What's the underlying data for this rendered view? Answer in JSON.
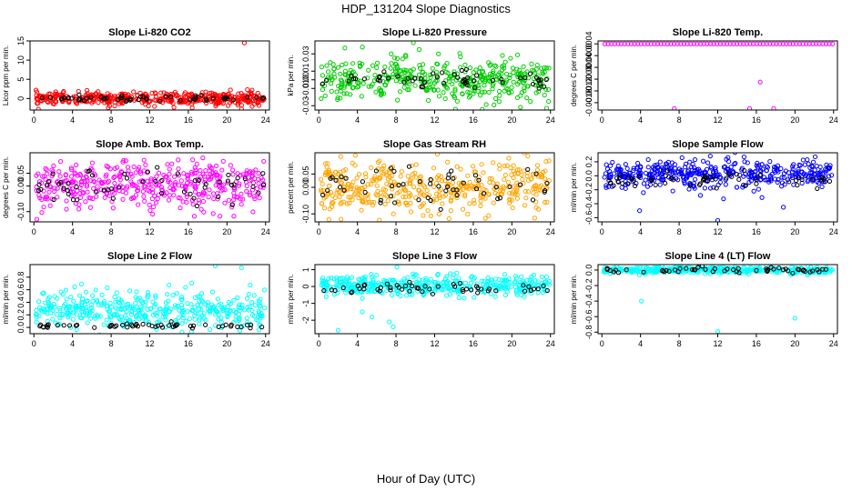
{
  "figure": {
    "title": "HDP_131204  Slope Diagnostics",
    "xlabel": "Hour of Day (UTC)"
  },
  "chart_data": [
    {
      "type": "scatter",
      "title": "Slope Li-820 CO2",
      "ylabel": "Licor ppm per min.",
      "color": "#ff0000",
      "xlim": [
        -0.4,
        24.4
      ],
      "ylim": [
        -3,
        15
      ],
      "yticks": [
        {
          "v": 0,
          "t": "0"
        },
        {
          "v": 5,
          "t": "5"
        },
        {
          "v": 10,
          "t": "10"
        },
        {
          "v": 15,
          "t": "15"
        }
      ],
      "xticks": [
        {
          "v": 0,
          "t": "0"
        },
        {
          "v": 4,
          "t": "4"
        },
        {
          "v": 8,
          "t": "8"
        },
        {
          "v": 12,
          "t": "12"
        },
        {
          "v": 16,
          "t": "16"
        },
        {
          "v": 20,
          "t": "20"
        },
        {
          "v": 24,
          "t": "24"
        }
      ],
      "main": {
        "mean": 0,
        "spread": 0.8
      },
      "ref": {
        "mean": 0,
        "spread": 0.4
      },
      "outliers": [
        [
          21.8,
          14.5
        ],
        [
          7.7,
          -2.4
        ],
        [
          16.4,
          -2.4
        ],
        [
          21.5,
          -2.7
        ],
        [
          22.6,
          2.2
        ],
        [
          23.2,
          1.4
        ]
      ]
    },
    {
      "type": "scatter",
      "title": "Slope Li-820 Pressure",
      "ylabel": "kPa per min.",
      "color": "#00cc00",
      "xlim": [
        -0.4,
        24.4
      ],
      "ylim": [
        -0.035,
        0.045
      ],
      "yticks": [
        {
          "v": -0.03,
          "t": "-0.03"
        },
        {
          "v": -0.01,
          "t": "-0.01"
        },
        {
          "v": 0,
          "t": "0.00"
        },
        {
          "v": 0.01,
          "t": "0.01"
        },
        {
          "v": 0.03,
          "t": "0.03"
        }
      ],
      "xticks": [
        {
          "v": 0,
          "t": "0"
        },
        {
          "v": 4,
          "t": "4"
        },
        {
          "v": 8,
          "t": "8"
        },
        {
          "v": 12,
          "t": "12"
        },
        {
          "v": 16,
          "t": "16"
        },
        {
          "v": 20,
          "t": "20"
        },
        {
          "v": 24,
          "t": "24"
        }
      ],
      "main": {
        "mean": 0.0,
        "spread": 0.012
      },
      "ref": {
        "mean": 0.0,
        "spread": 0.005
      },
      "outliers": [
        [
          9.8,
          0.043
        ],
        [
          6.4,
          -0.012
        ],
        [
          16.0,
          -0.016
        ],
        [
          23.6,
          -0.033
        ],
        [
          7.5,
          0.03
        ],
        [
          10.4,
          0.035
        ]
      ]
    },
    {
      "type": "scatter",
      "title": "Slope Li-820 Temp.",
      "ylabel": "degrees C per min.",
      "color": "#ff00ff",
      "xlim": [
        -0.4,
        24.4
      ],
      "ylim": [
        -0.00185,
        0.0005
      ],
      "yticks": [
        {
          "v": -0.0016,
          "t": "-0.0016"
        },
        {
          "v": -0.0012,
          "t": "-0.0012"
        },
        {
          "v": -0.0008,
          "t": "-0.0008"
        },
        {
          "v": -0.0004,
          "t": "-0.0004"
        },
        {
          "v": 0,
          "t": "0.0000"
        },
        {
          "v": 0.0004,
          "t": "0.0004"
        }
      ],
      "xticks": [
        {
          "v": 0,
          "t": "0"
        },
        {
          "v": 4,
          "t": "4"
        },
        {
          "v": 8,
          "t": "8"
        },
        {
          "v": 12,
          "t": "12"
        },
        {
          "v": 16,
          "t": "16"
        },
        {
          "v": 20,
          "t": "20"
        },
        {
          "v": 24,
          "t": "24"
        }
      ],
      "constant": 0.0004,
      "outliers": [
        [
          7.5,
          -0.0018
        ],
        [
          16.4,
          -0.0009
        ],
        [
          15.3,
          -0.0018
        ],
        [
          17.8,
          -0.0018
        ]
      ]
    },
    {
      "type": "scatter",
      "title": "Slope Amb. Box Temp.",
      "ylabel": "degrees C per min.",
      "color": "#ff00ff",
      "xlim": [
        -0.4,
        24.4
      ],
      "ylim": [
        -0.14,
        0.13
      ],
      "yticks": [
        {
          "v": -0.1,
          "t": "-0.10"
        },
        {
          "v": 0,
          "t": "0.00"
        },
        {
          "v": 0.05,
          "t": "0.05"
        }
      ],
      "xticks": [
        {
          "v": 0,
          "t": "0"
        },
        {
          "v": 4,
          "t": "4"
        },
        {
          "v": 8,
          "t": "8"
        },
        {
          "v": 12,
          "t": "12"
        },
        {
          "v": 16,
          "t": "16"
        },
        {
          "v": 20,
          "t": "20"
        },
        {
          "v": 24,
          "t": "24"
        }
      ],
      "main": {
        "mean": 0,
        "spread": 0.045
      },
      "ref": {
        "mean": 0,
        "spread": 0.035
      },
      "outliers": [
        [
          0.3,
          -0.13
        ],
        [
          17.5,
          0.11
        ],
        [
          12.3,
          -0.11
        ]
      ]
    },
    {
      "type": "scatter",
      "title": "Slope Gas Stream RH",
      "ylabel": "percent per min.",
      "color": "#ffa500",
      "xlim": [
        -0.4,
        24.4
      ],
      "ylim": [
        -0.13,
        0.13
      ],
      "yticks": [
        {
          "v": -0.1,
          "t": "-0.10"
        },
        {
          "v": 0,
          "t": "0.00"
        },
        {
          "v": 0.05,
          "t": "0.05"
        }
      ],
      "xticks": [
        {
          "v": 0,
          "t": "0"
        },
        {
          "v": 4,
          "t": "4"
        },
        {
          "v": 8,
          "t": "8"
        },
        {
          "v": 12,
          "t": "12"
        },
        {
          "v": 16,
          "t": "16"
        },
        {
          "v": 20,
          "t": "20"
        },
        {
          "v": 24,
          "t": "24"
        }
      ],
      "main": {
        "mean": 0,
        "spread": 0.05
      },
      "ref": {
        "mean": 0,
        "spread": 0.04
      },
      "outliers": [
        [
          3.8,
          0.12
        ],
        [
          2.3,
          -0.12
        ]
      ]
    },
    {
      "type": "scatter",
      "title": "Slope Sample Flow",
      "ylabel": "ml/min per min.",
      "color": "#0000ff",
      "xlim": [
        -0.4,
        24.4
      ],
      "ylim": [
        -0.66,
        0.33
      ],
      "yticks": [
        {
          "v": -0.6,
          "t": "-0.6"
        },
        {
          "v": -0.4,
          "t": "-0.4"
        },
        {
          "v": -0.2,
          "t": "-0.2"
        },
        {
          "v": 0,
          "t": "0.0"
        },
        {
          "v": 0.2,
          "t": "0.2"
        }
      ],
      "xticks": [
        {
          "v": 0,
          "t": "0"
        },
        {
          "v": 4,
          "t": "4"
        },
        {
          "v": 8,
          "t": "8"
        },
        {
          "v": 12,
          "t": "12"
        },
        {
          "v": 16,
          "t": "16"
        },
        {
          "v": 20,
          "t": "20"
        },
        {
          "v": 24,
          "t": "24"
        }
      ],
      "main": {
        "mean": 0.02,
        "spread": 0.1
      },
      "ref": {
        "mean": -0.05,
        "spread": 0.05
      },
      "outliers": [
        [
          12.0,
          -0.64
        ],
        [
          3.9,
          -0.5
        ],
        [
          18.8,
          -0.45
        ],
        [
          12.6,
          -0.33
        ],
        [
          8.3,
          0.26
        ]
      ]
    },
    {
      "type": "scatter",
      "title": "Slope Line 2 Flow",
      "ylabel": "ml/min per min.",
      "color": "#00ffff",
      "xlim": [
        -0.4,
        24.4
      ],
      "ylim": [
        -0.1,
        1.0
      ],
      "yticks": [
        {
          "v": 0,
          "t": "0.0"
        },
        {
          "v": 0.2,
          "t": "0.2"
        },
        {
          "v": 0.4,
          "t": "0.4"
        },
        {
          "v": 0.6,
          "t": "0.6"
        },
        {
          "v": 0.8,
          "t": "0.8"
        }
      ],
      "xticks": [
        {
          "v": 0,
          "t": "0"
        },
        {
          "v": 4,
          "t": "4"
        },
        {
          "v": 8,
          "t": "8"
        },
        {
          "v": 12,
          "t": "12"
        },
        {
          "v": 16,
          "t": "16"
        },
        {
          "v": 20,
          "t": "20"
        },
        {
          "v": 24,
          "t": "24"
        }
      ],
      "main": {
        "mean": 0.28,
        "spread": 0.15
      },
      "ref": {
        "mean": 0.02,
        "spread": 0.02
      },
      "outliers": [
        [
          18.8,
          0.98
        ],
        [
          21.5,
          0.95
        ],
        [
          7.6,
          0.63
        ]
      ]
    },
    {
      "type": "scatter",
      "title": "Slope Line 3 Flow",
      "ylabel": "ml/min per min.",
      "color": "#00ffff",
      "xlim": [
        -0.4,
        24.4
      ],
      "ylim": [
        -2.8,
        1.3
      ],
      "yticks": [
        {
          "v": -2,
          "t": "-2"
        },
        {
          "v": -1,
          "t": "-1"
        },
        {
          "v": 0,
          "t": "0"
        },
        {
          "v": 1,
          "t": "1"
        }
      ],
      "xticks": [
        {
          "v": 0,
          "t": "0"
        },
        {
          "v": 4,
          "t": "4"
        },
        {
          "v": 8,
          "t": "8"
        },
        {
          "v": 12,
          "t": "12"
        },
        {
          "v": 16,
          "t": "16"
        },
        {
          "v": 20,
          "t": "20"
        },
        {
          "v": 24,
          "t": "24"
        }
      ],
      "main": {
        "mean": 0.05,
        "spread": 0.3
      },
      "ref": {
        "mean": -0.1,
        "spread": 0.2
      },
      "outliers": [
        [
          2.0,
          -2.6
        ],
        [
          7.7,
          -2.4
        ],
        [
          7.3,
          -2.1
        ],
        [
          8.1,
          1.15
        ],
        [
          5.5,
          -1.8
        ],
        [
          4.5,
          -1.5
        ]
      ]
    },
    {
      "type": "scatter",
      "title": "Slope Line 4 (LT) Flow",
      "ylabel": "ml/min per min.",
      "color": "#00ffff",
      "xlim": [
        -0.4,
        24.4
      ],
      "ylim": [
        -0.82,
        0.07
      ],
      "yticks": [
        {
          "v": -0.8,
          "t": "-0.8"
        },
        {
          "v": -0.6,
          "t": "-0.6"
        },
        {
          "v": -0.4,
          "t": "-0.4"
        },
        {
          "v": -0.2,
          "t": "-0.2"
        },
        {
          "v": 0,
          "t": "0.0"
        }
      ],
      "xticks": [
        {
          "v": 0,
          "t": "0"
        },
        {
          "v": 4,
          "t": "4"
        },
        {
          "v": 8,
          "t": "8"
        },
        {
          "v": 12,
          "t": "12"
        },
        {
          "v": 16,
          "t": "16"
        },
        {
          "v": 20,
          "t": "20"
        },
        {
          "v": 24,
          "t": "24"
        }
      ],
      "main": {
        "mean": 0.0,
        "spread": 0.02
      },
      "ref": {
        "mean": 0.0,
        "spread": 0.02
      },
      "outliers": [
        [
          12.0,
          -0.79
        ],
        [
          20.0,
          -0.62
        ],
        [
          4.1,
          -0.4
        ]
      ]
    }
  ]
}
